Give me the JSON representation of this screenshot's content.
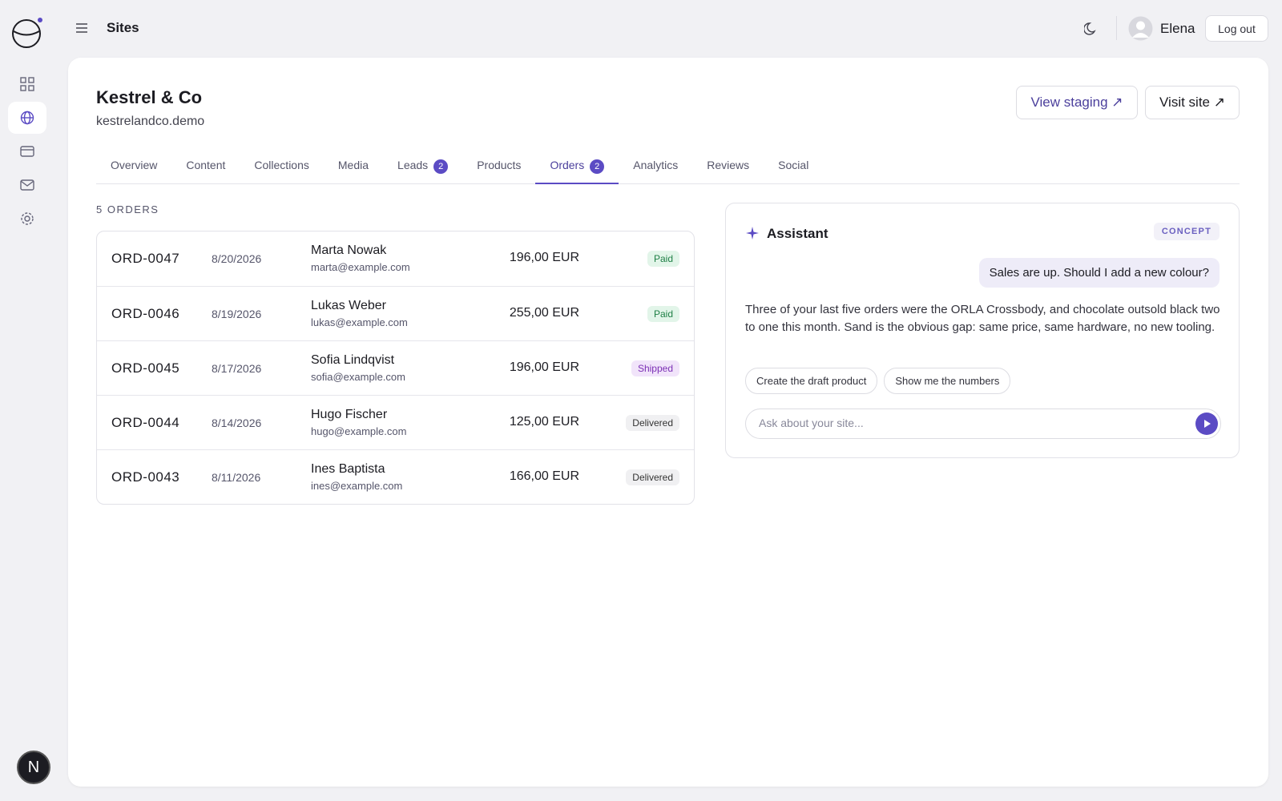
{
  "header": {
    "title": "Sites",
    "user": "Elena",
    "logout": "Log out"
  },
  "site": {
    "name": "Kestrel & Co",
    "domain": "kestrelandco.demo",
    "buttons": [
      "View staging ↗",
      "Visit site ↗"
    ]
  },
  "tabs": [
    {
      "label": "Overview"
    },
    {
      "label": "Content"
    },
    {
      "label": "Collections"
    },
    {
      "label": "Media"
    },
    {
      "label": "Leads",
      "badge": 2
    },
    {
      "label": "Products"
    },
    {
      "label": "Orders",
      "badge": 2,
      "active": true
    },
    {
      "label": "Analytics"
    },
    {
      "label": "Reviews"
    },
    {
      "label": "Social"
    }
  ],
  "orders": {
    "heading": "5 ORDERS",
    "rows": [
      {
        "id": "ORD-0047",
        "date": "8/20/2026",
        "name": "Marta Nowak",
        "email": "marta@example.com",
        "amount": "196,00 EUR",
        "status": {
          "label": "Paid",
          "color": "#1e7f45",
          "background": "#e2f5e9"
        }
      },
      {
        "id": "ORD-0046",
        "date": "8/19/2026",
        "name": "Lukas Weber",
        "email": "lukas@example.com",
        "amount": "255,00 EUR",
        "status": {
          "label": "Paid",
          "color": "#1e7f45",
          "background": "#e2f5e9"
        }
      },
      {
        "id": "ORD-0045",
        "date": "8/17/2026",
        "name": "Sofia Lindqvist",
        "email": "sofia@example.com",
        "amount": "196,00 EUR",
        "status": {
          "label": "Shipped",
          "color": "#7b2fb5",
          "background": "#f1e4fa"
        }
      },
      {
        "id": "ORD-0044",
        "date": "8/14/2026",
        "name": "Hugo Fischer",
        "email": "hugo@example.com",
        "amount": "125,00 EUR",
        "status": {
          "label": "Delivered",
          "color": "#333333",
          "background": "#f0f0f2"
        }
      },
      {
        "id": "ORD-0043",
        "date": "8/11/2026",
        "name": "Ines Baptista",
        "email": "ines@example.com",
        "amount": "166,00 EUR",
        "status": {
          "label": "Delivered",
          "color": "#333333",
          "background": "#f0f0f2"
        }
      }
    ]
  },
  "assistant": {
    "title": "Assistant",
    "tag": "CONCEPT",
    "user_message": "Sales are up. Should I add a new colour?",
    "reply": "Three of your last five orders were the ORLA Crossbody, and chocolate outsold black two to one this month. Sand is the obvious gap: same price, same hardware, no new tooling.",
    "suggestions": [
      "Create the draft product",
      "Show me the numbers"
    ],
    "placeholder": "Ask about your site..."
  },
  "badge_initial": "N"
}
